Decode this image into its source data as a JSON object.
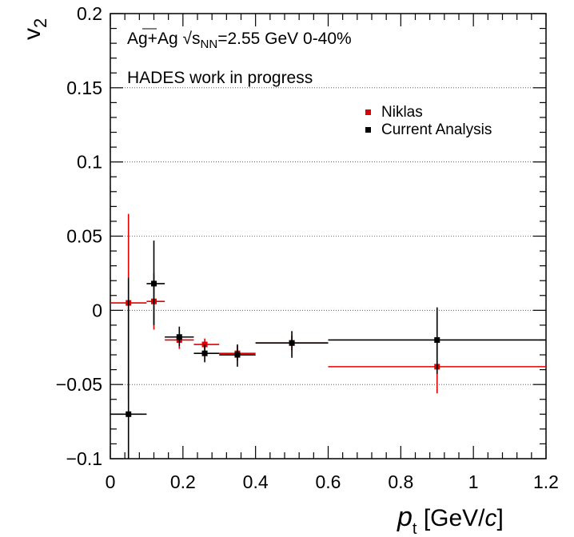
{
  "chart_data": {
    "type": "scatter",
    "xlim": [
      0,
      1.2
    ],
    "ylim": [
      -0.1,
      0.2
    ],
    "x_ticks": [
      "0",
      "0.2",
      "0.4",
      "0.6",
      "0.8",
      "1",
      "1.2"
    ],
    "y_ticks": [
      "−0.1",
      "−0.05",
      "0",
      "0.05",
      "0.1",
      "0.15",
      "0.2"
    ],
    "x_tick_values": [
      0,
      0.2,
      0.4,
      0.6,
      0.8,
      1.0,
      1.2
    ],
    "y_tick_values": [
      -0.1,
      -0.05,
      0,
      0.05,
      0.1,
      0.15,
      0.2
    ],
    "ylabel_main": "v",
    "ylabel_sub": "2",
    "xlabel_main": "p",
    "xlabel_sub": "t",
    "xlabel_unit": " [GeV/",
    "xlabel_c": "c",
    "xlabel_close": "]",
    "grid": "horizontal dotted",
    "annotation_line1_prefix": "Ag+Ag ",
    "annotation_sqrt_s": "s",
    "annotation_sqrt_sub": "NN",
    "annotation_line1_suffix": "=2.55 GeV 0-40%",
    "annotation_line2": "HADES work in progress",
    "legend_position": "top-right",
    "series": [
      {
        "name": "Niklas",
        "color": "#e00000",
        "points": [
          {
            "x": 0.05,
            "y": 0.005,
            "xlo": 0.0,
            "xhi": 0.1,
            "ylo": -0.06,
            "yhi": 0.065
          },
          {
            "x": 0.12,
            "y": 0.006,
            "xlo": 0.1,
            "xhi": 0.15,
            "ylo": -0.013,
            "yhi": 0.025
          },
          {
            "x": 0.19,
            "y": -0.02,
            "xlo": 0.15,
            "xhi": 0.23,
            "ylo": -0.026,
            "yhi": -0.014
          },
          {
            "x": 0.26,
            "y": -0.023,
            "xlo": 0.23,
            "xhi": 0.3,
            "ylo": -0.027,
            "yhi": -0.019
          },
          {
            "x": 0.35,
            "y": -0.029,
            "xlo": 0.3,
            "xhi": 0.4,
            "ylo": -0.034,
            "yhi": -0.024
          },
          {
            "x": 0.5,
            "y": -0.022,
            "xlo": 0.4,
            "xhi": 0.6,
            "ylo": -0.027,
            "yhi": -0.017
          },
          {
            "x": 0.9,
            "y": -0.038,
            "xlo": 0.6,
            "xhi": 1.2,
            "ylo": -0.056,
            "yhi": -0.02
          }
        ]
      },
      {
        "name": "Current Analysis",
        "color": "#000000",
        "points": [
          {
            "x": 0.05,
            "y": -0.07,
            "xlo": 0.0,
            "xhi": 0.1,
            "ylo": -0.1,
            "yhi": 0.022
          },
          {
            "x": 0.12,
            "y": 0.018,
            "xlo": 0.1,
            "xhi": 0.15,
            "ylo": -0.01,
            "yhi": 0.047
          },
          {
            "x": 0.19,
            "y": -0.018,
            "xlo": 0.15,
            "xhi": 0.23,
            "ylo": -0.024,
            "yhi": -0.011
          },
          {
            "x": 0.26,
            "y": -0.029,
            "xlo": 0.23,
            "xhi": 0.3,
            "ylo": -0.035,
            "yhi": -0.023
          },
          {
            "x": 0.35,
            "y": -0.03,
            "xlo": 0.3,
            "xhi": 0.4,
            "ylo": -0.038,
            "yhi": -0.023
          },
          {
            "x": 0.5,
            "y": -0.022,
            "xlo": 0.4,
            "xhi": 0.6,
            "ylo": -0.032,
            "yhi": -0.014
          },
          {
            "x": 0.9,
            "y": -0.02,
            "xlo": 0.6,
            "xhi": 1.2,
            "ylo": -0.043,
            "yhi": 0.002
          }
        ]
      }
    ]
  }
}
